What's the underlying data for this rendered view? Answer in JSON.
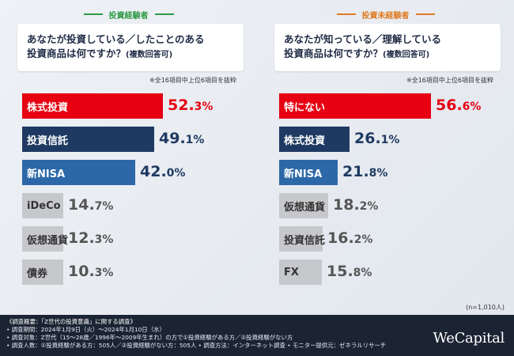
{
  "colors": {
    "top1": "#e60012",
    "top_navy": "#1f3a62",
    "top_blue": "#2c68a8",
    "gray": "#c7c8cb",
    "left_group": "#2f9a46",
    "right_group": "#e07b22"
  },
  "chart_data": [
    {
      "type": "bar",
      "group_label": "投資経験者",
      "title_line1": "あなたが投資している／したことのある",
      "title_line2": "投資商品は何ですか？",
      "title_suffix": "(複数回答可)",
      "note": "※全16項目中上位6項目を抜粋",
      "categories": [
        "株式投資",
        "投資信託",
        "新NISA",
        "iDeCo",
        "仮想通貨",
        "債券"
      ],
      "values": [
        52.3,
        49.1,
        42.0,
        14.7,
        12.3,
        10.3
      ],
      "unit": "%",
      "xlim": [
        0,
        100
      ],
      "bar_colors": [
        "#e60012",
        "#1f3a62",
        "#2c68a8",
        "#c7c8cb",
        "#c7c8cb",
        "#c7c8cb"
      ]
    },
    {
      "type": "bar",
      "group_label": "投資未経験者",
      "title_line1": "あなたが知っている／理解している",
      "title_line2": "投資商品は何ですか？",
      "title_suffix": "(複数回答可)",
      "note": "※全16項目中上位6項目を抜粋",
      "categories": [
        "特にない",
        "株式投資",
        "新NISA",
        "仮想通貨",
        "投資信託",
        "FX"
      ],
      "values": [
        56.6,
        26.1,
        21.8,
        18.2,
        16.2,
        15.8
      ],
      "unit": "%",
      "xlim": [
        0,
        100
      ],
      "bar_colors": [
        "#e60012",
        "#1f3a62",
        "#2c68a8",
        "#c7c8cb",
        "#c7c8cb",
        "#c7c8cb"
      ]
    }
  ],
  "sample_size": "(n=1,010人)",
  "footer": {
    "lines": [
      "《調査概要：「Z世代の投資意識」に関する調査》",
      "• 調査期間：2024年1月9日（火）～2024年1月10日（水）",
      "• 調査対象：Z世代（15～28歳／1996年～2009年生まれ）の方で①投資経験がある方／②投資経験がない方",
      "• 調査人数：①投資経験がある方：505人／②投資経験がない方：505人 • 調査方法：インターネット調査 • モニター提供元：ゼネラルリサーチ"
    ],
    "brand": "WeCapital"
  }
}
